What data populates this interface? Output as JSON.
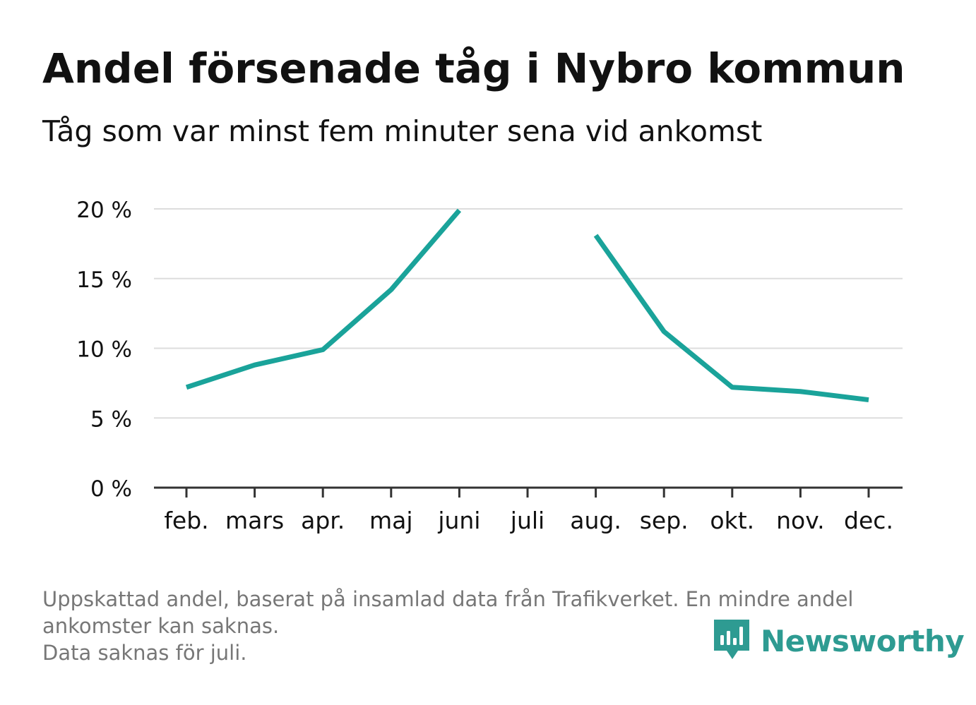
{
  "chart_data": {
    "type": "line",
    "title": "Andel försenade tåg i Nybro kommun",
    "subtitle": "Tåg som var minst fem minuter sena vid ankomst",
    "categories": [
      "feb.",
      "mars",
      "apr.",
      "maj",
      "juni",
      "juli",
      "aug.",
      "sep.",
      "okt.",
      "nov.",
      "dec."
    ],
    "series": [
      {
        "values": [
          7.2,
          8.8,
          9.9,
          14.2,
          19.9,
          null,
          18.1,
          11.2,
          7.2,
          6.9,
          6.3
        ],
        "color": "#1aa39a"
      }
    ],
    "y_ticks": [
      0,
      5,
      10,
      15,
      20
    ],
    "y_tick_labels": [
      "0 %",
      "5 %",
      "10 %",
      "15 %",
      "20 %"
    ],
    "ylim": [
      0,
      20
    ],
    "grid": true,
    "xlabel": "",
    "ylabel": ""
  },
  "footer": {
    "note_line1": "Uppskattad andel, baserat på insamlad data från Trafikverket. En mindre andel ankomster kan saknas.",
    "note_line2": "Data saknas för juli."
  },
  "brand": {
    "name": "Newsworthy",
    "icon": "newsworthy-logo-icon",
    "color": "#2e9b92"
  },
  "colors": {
    "gridline": "#dddddd",
    "axis": "#333333",
    "text": "#111111",
    "footer_text": "#777777"
  }
}
